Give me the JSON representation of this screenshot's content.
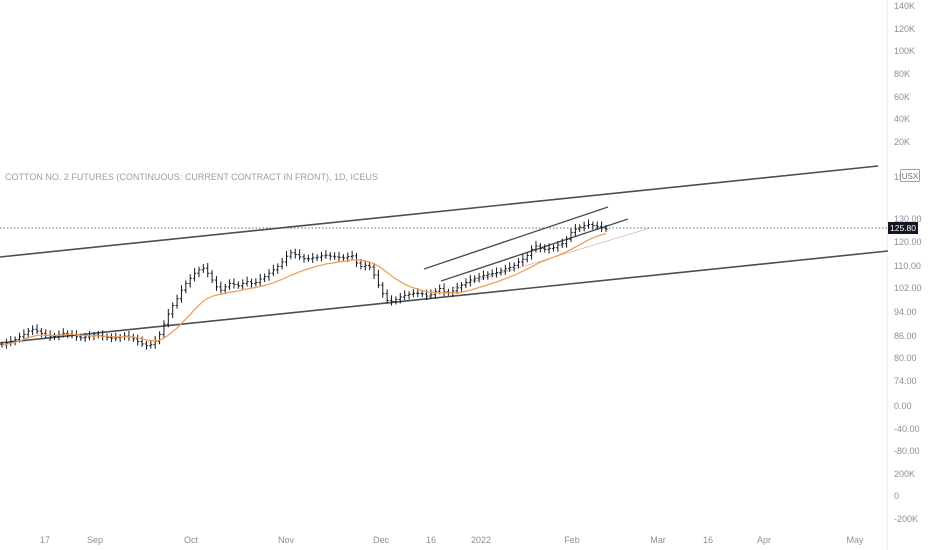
{
  "title": "COTTON NO. 2 FUTURES (CONTINUOUS: CURRENT CONTRACT IN FRONT), 1D, ICEUS",
  "currency_badge": "USX",
  "last_price": "125.80",
  "colors": {
    "price_bar": "#131722",
    "moving_average": "#f0a05a",
    "trend_line": "#4a4e57",
    "thin_trend_line": "#e0b0b0",
    "last_price_line": "#3d3f45",
    "axis_text": "#8a8f98"
  },
  "price_axis_labels": [
    "140K",
    "120K",
    "100K",
    "80K",
    "60K",
    "40K",
    "20K",
    "15",
    "130.00",
    "120.00",
    "110.00",
    "102.00",
    "94.00",
    "86.00",
    "80.00",
    "74.00",
    "0.00",
    "-40.00",
    "-80.00",
    "200K",
    "0",
    "-200K"
  ],
  "time_axis_labels": [
    "17",
    "Sep",
    "Oct",
    "Nov",
    "Dec",
    "16",
    "2022",
    "Feb",
    "Mar",
    "16",
    "Apr",
    "May"
  ],
  "chart_data": {
    "type": "line",
    "title": "COTTON NO. 2 FUTURES (CONTINUOUS: CURRENT CONTRACT IN FRONT), 1D, ICEUS",
    "xlabel": "",
    "ylabel": "",
    "last_value": 125.8,
    "x_ticks": [
      "17",
      "Sep",
      "Oct",
      "Nov",
      "Dec",
      "16",
      "2022",
      "Feb",
      "Mar",
      "16",
      "Apr",
      "May"
    ],
    "y_ticks": [
      130,
      120,
      110,
      102,
      94,
      86,
      80,
      74
    ],
    "series": [
      {
        "name": "",
        "values": [
          91.5,
          92,
          92.5,
          93,
          93.8,
          94.5,
          95.5,
          96,
          95.5,
          94.8,
          94.2,
          93.8,
          94,
          94.5,
          94.8,
          94.6,
          94.2,
          93.8,
          93.5,
          93.7,
          94,
          94.3,
          94.2,
          93.9,
          93.6,
          93.4,
          93.5,
          93.7,
          94,
          93.8,
          93.2,
          92.4,
          91.7,
          91.2,
          91.5,
          92.5,
          94.5,
          97.5,
          100.5,
          103,
          105,
          107.5,
          109.5,
          111,
          112.5,
          113.5,
          114,
          112.5,
          110.5,
          108.5,
          107.5,
          108.5,
          109.5,
          109.2,
          108.8,
          109.5,
          110,
          109.5,
          109.8,
          110.8,
          111.5,
          112.5,
          113.5,
          114.5,
          115.8,
          117.5,
          118.5,
          118,
          117.3,
          116.8,
          116.7,
          117,
          117.2,
          117.6,
          117.8,
          117.5,
          117.3,
          117.2,
          117,
          117.4,
          117.6,
          115.5,
          114.5,
          114.8,
          114.3,
          112,
          109,
          106.5,
          104.5,
          104.2,
          104.8,
          105.5,
          106,
          106.3,
          106.6,
          106.6,
          106.4,
          105.8,
          106.2,
          107.2,
          108,
          107,
          106.8,
          107.3,
          108.2,
          109,
          109.8,
          110.5,
          111,
          111.4,
          111.8,
          112.2,
          112.4,
          112.7,
          113.2,
          113.8,
          114.2,
          114.8,
          115.8,
          116.6,
          117.7,
          119.5,
          120.5,
          119.8,
          119.5,
          119.8,
          120,
          120.8,
          121.2,
          122.5,
          124.5,
          125.5,
          126,
          126.5,
          126.8,
          126.5,
          126.2,
          125.8,
          125.5
        ]
      },
      {
        "name": "",
        "values": [
          91.3,
          91.6,
          91.9,
          92.2,
          92.6,
          93,
          93.5,
          93.9,
          94.2,
          94.3,
          94.3,
          94.2,
          94.2,
          94.3,
          94.4,
          94.5,
          94.5,
          94.4,
          94.3,
          94.2,
          94.1,
          94.1,
          94.1,
          94,
          94,
          93.9,
          93.8,
          93.8,
          93.8,
          93.8,
          93.7,
          93.5,
          93.2,
          92.9,
          92.7,
          92.6,
          92.8,
          93.4,
          94.3,
          95.3,
          96.4,
          97.7,
          99,
          100.4,
          101.8,
          103.1,
          104.3,
          105.1,
          105.7,
          106.1,
          106.3,
          106.6,
          106.9,
          107.1,
          107.3,
          107.6,
          107.9,
          108.1,
          108.3,
          108.6,
          108.9,
          109.3,
          109.7,
          110.2,
          110.7,
          111.3,
          111.9,
          112.4,
          112.9,
          113.4,
          113.8,
          114.2,
          114.6,
          114.9,
          115.2,
          115.4,
          115.6,
          115.8,
          116,
          116.2,
          116.4,
          116.4,
          116.3,
          116.1,
          115.8,
          115.3,
          114.6,
          113.7,
          112.7,
          111.7,
          110.8,
          110,
          109.3,
          108.7,
          108.2,
          107.8,
          107.4,
          107.1,
          106.9,
          106.8,
          106.8,
          106.7,
          106.7,
          106.7,
          106.8,
          106.9,
          107.2,
          107.5,
          107.9,
          108.3,
          108.7,
          109.1,
          109.5,
          109.9,
          110.4,
          110.9,
          111.4,
          111.9,
          112.5,
          113.1,
          113.7,
          114.4,
          115.1,
          115.7,
          116.2,
          116.7,
          117.2,
          117.7,
          118.2,
          118.8,
          119.5,
          120.2,
          120.9,
          121.6,
          122.3,
          122.9,
          123.4,
          123.8,
          124.1
        ]
      }
    ]
  }
}
